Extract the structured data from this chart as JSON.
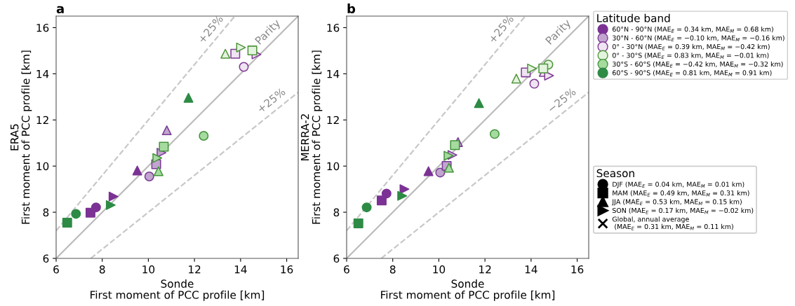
{
  "chart_data": [
    {
      "type": "scatter",
      "title": "a",
      "xlabel": "Sonde\nFirst moment of PCC profile [km]",
      "ylabel": "ERA5\nFirst moment of PCC profile [km]",
      "xlim": [
        6,
        16.5
      ],
      "ylim": [
        6,
        16.5
      ],
      "xticks": [
        6,
        8,
        10,
        12,
        14,
        16
      ],
      "yticks": [
        6,
        8,
        10,
        12,
        14,
        16
      ],
      "legend": false,
      "annotations": [
        "+25%",
        "Parity",
        "+25%"
      ],
      "series": [
        {
          "type": "line",
          "color": "#c8c8c8",
          "line_style": "dashed",
          "x": [
            6,
            13.75
          ],
          "values": [
            7.2,
            16.5
          ]
        },
        {
          "type": "line",
          "color": "#bbbbbb",
          "line_style": "solid",
          "x": [
            6,
            16.5
          ],
          "values": [
            6,
            16.5
          ]
        },
        {
          "type": "line",
          "color": "#c8c8c8",
          "line_style": "dashed",
          "x": [
            7.5,
            16.5
          ],
          "values": [
            6,
            13.2
          ]
        },
        {
          "color": "#7b3294",
          "marker": "circle",
          "x": [
            7.73
          ],
          "values": [
            8.21
          ]
        },
        {
          "color": "#7b3294",
          "marker": "square",
          "x": [
            7.49
          ],
          "values": [
            7.98
          ]
        },
        {
          "color": "#7b3294",
          "marker": "triangle",
          "x": [
            9.52
          ],
          "values": [
            9.81
          ]
        },
        {
          "color": "#7b3294",
          "marker": "triangle-right",
          "x": [
            8.49
          ],
          "values": [
            8.68
          ]
        },
        {
          "color": "#c2a5cf",
          "marker": "circle",
          "x": [
            10.04
          ],
          "values": [
            9.55
          ]
        },
        {
          "color": "#c2a5cf",
          "marker": "square",
          "x": [
            10.34
          ],
          "values": [
            10.08
          ]
        },
        {
          "color": "#c2a5cf",
          "marker": "triangle",
          "x": [
            10.8
          ],
          "values": [
            11.55
          ]
        },
        {
          "color": "#c2a5cf",
          "marker": "triangle-right",
          "x": [
            10.57
          ],
          "values": [
            10.58
          ]
        },
        {
          "color": "#efe4f2",
          "marker": "circle",
          "x": [
            14.14
          ],
          "values": [
            14.3
          ]
        },
        {
          "color": "#efe4f2",
          "marker": "square",
          "x": [
            13.77
          ],
          "values": [
            14.87
          ]
        },
        {
          "color": "#efe4f2",
          "marker": "triangle-right",
          "x": [
            14.69
          ],
          "values": [
            14.84
          ]
        },
        {
          "color": "#e3f4de",
          "marker": "square",
          "x": [
            14.51
          ],
          "values": [
            15.01
          ]
        },
        {
          "color": "#e3f4de",
          "marker": "triangle",
          "x": [
            13.34
          ],
          "values": [
            14.87
          ]
        },
        {
          "color": "#e3f4de",
          "marker": "triangle-right",
          "x": [
            14.02
          ],
          "values": [
            15.14
          ]
        },
        {
          "color": "#a6dba0",
          "marker": "circle",
          "x": [
            12.4
          ],
          "values": [
            11.31
          ]
        },
        {
          "color": "#a6dba0",
          "marker": "square",
          "x": [
            10.67
          ],
          "values": [
            10.84
          ]
        },
        {
          "color": "#a6dba0",
          "marker": "triangle",
          "x": [
            10.44
          ],
          "values": [
            9.78
          ]
        },
        {
          "color": "#a6dba0",
          "marker": "triangle-right",
          "x": [
            10.39
          ],
          "values": [
            10.35
          ]
        },
        {
          "color": "#2e8b45",
          "marker": "circle",
          "x": [
            6.86
          ],
          "values": [
            7.93
          ]
        },
        {
          "color": "#2e8b45",
          "marker": "square",
          "x": [
            6.48
          ],
          "values": [
            7.55
          ]
        },
        {
          "color": "#2e8b45",
          "marker": "triangle",
          "x": [
            11.74
          ],
          "values": [
            12.96
          ]
        },
        {
          "color": "#2e8b45",
          "marker": "triangle-right",
          "x": [
            8.37
          ],
          "values": [
            8.31
          ]
        }
      ]
    },
    {
      "type": "scatter",
      "title": "b",
      "xlabel": "Sonde\nFirst moment of PCC profile [km]",
      "ylabel": "MERRA-2\nFirst moment of PCC profile [km]",
      "xlim": [
        6,
        16.5
      ],
      "ylim": [
        6,
        16.5
      ],
      "xticks": [
        6,
        8,
        10,
        12,
        14,
        16
      ],
      "yticks": [
        6,
        8,
        10,
        12,
        14,
        16
      ],
      "legend": "right",
      "legend_title": [
        "Latitude band",
        "Season"
      ],
      "annotations": [
        "+25%",
        "Parity",
        "−25%"
      ],
      "series": [
        {
          "type": "line",
          "color": "#c8c8c8",
          "line_style": "dashed",
          "x": [
            6,
            13.75
          ],
          "values": [
            7.2,
            16.5
          ]
        },
        {
          "type": "line",
          "color": "#bbbbbb",
          "line_style": "solid",
          "x": [
            6,
            16.5
          ],
          "values": [
            6,
            16.5
          ]
        },
        {
          "type": "line",
          "color": "#c8c8c8",
          "line_style": "dashed",
          "x": [
            7.5,
            16.5
          ],
          "values": [
            6,
            13.2
          ]
        },
        {
          "name": "60°N - 90°N (MAE$_{E}$ = 0.34 km, MAE$_{M}$ = 0.68 km)",
          "color": "#7b3294",
          "marker": "circle",
          "x": [
            7.73
          ],
          "values": [
            8.81
          ]
        },
        {
          "color": "#7b3294",
          "marker": "square",
          "x": [
            7.52
          ],
          "values": [
            8.51
          ]
        },
        {
          "color": "#7b3294",
          "marker": "triangle",
          "x": [
            9.55
          ],
          "values": [
            9.78
          ]
        },
        {
          "color": "#7b3294",
          "marker": "triangle-right",
          "x": [
            8.51
          ],
          "values": [
            9.0
          ]
        },
        {
          "name": "30°N - 60°N (MAE$_{E}$ = −0.10 km, MAE$_{M}$ = −0.16 km)",
          "color": "#c2a5cf",
          "marker": "circle",
          "x": [
            10.06
          ],
          "values": [
            9.72
          ]
        },
        {
          "color": "#c2a5cf",
          "marker": "square",
          "x": [
            10.34
          ],
          "values": [
            10.01
          ]
        },
        {
          "color": "#c2a5cf",
          "marker": "triangle",
          "x": [
            10.83
          ],
          "values": [
            11.04
          ]
        },
        {
          "color": "#c2a5cf",
          "marker": "triangle-right",
          "x": [
            10.59
          ],
          "values": [
            10.48
          ]
        },
        {
          "name": "0° - 30°N (MAE$_{E}$ = 0.39 km, MAE$_{M}$ = −0.42 km)",
          "color": "#efe4f2",
          "marker": "circle",
          "x": [
            14.14
          ],
          "values": [
            13.57
          ]
        },
        {
          "color": "#efe4f2",
          "marker": "square",
          "x": [
            13.77
          ],
          "values": [
            14.06
          ]
        },
        {
          "color": "#efe4f2",
          "marker": "triangle",
          "x": [
            14.55
          ],
          "values": [
            14.08
          ]
        },
        {
          "color": "#efe4f2",
          "marker": "triangle-right",
          "x": [
            14.78
          ],
          "values": [
            13.92
          ]
        },
        {
          "name": "0° - 30°S (MAE$_{E}$ = 0.83 km, MAE$_{M}$ = −0.01 km)",
          "color": "#e3f4de",
          "marker": "circle",
          "x": [
            14.75
          ],
          "values": [
            14.4
          ]
        },
        {
          "color": "#e3f4de",
          "marker": "square",
          "x": [
            14.53
          ],
          "values": [
            14.23
          ]
        },
        {
          "color": "#e3f4de",
          "marker": "triangle",
          "x": [
            13.36
          ],
          "values": [
            13.79
          ]
        },
        {
          "color": "#e3f4de",
          "marker": "triangle-right",
          "x": [
            14.04
          ],
          "values": [
            14.23
          ]
        },
        {
          "name": "30°S - 60°S (MAE$_{E}$ = −0.42 km, MAE$_{M}$ = −0.32 km)",
          "color": "#a6dba0",
          "marker": "circle",
          "x": [
            12.42
          ],
          "values": [
            11.39
          ]
        },
        {
          "color": "#a6dba0",
          "marker": "square",
          "x": [
            10.7
          ],
          "values": [
            10.91
          ]
        },
        {
          "color": "#a6dba0",
          "marker": "triangle",
          "x": [
            10.44
          ],
          "values": [
            9.93
          ]
        },
        {
          "color": "#a6dba0",
          "marker": "triangle-right",
          "x": [
            10.42
          ],
          "values": [
            10.45
          ]
        },
        {
          "name": "60°S - 90°S (MAE$_{E}$ = 0.81 km, MAE$_{M}$ = 0.91 km)",
          "color": "#2e8b45",
          "marker": "circle",
          "x": [
            6.87
          ],
          "values": [
            8.21
          ]
        },
        {
          "color": "#2e8b45",
          "marker": "square",
          "x": [
            6.51
          ],
          "values": [
            7.52
          ]
        },
        {
          "color": "#2e8b45",
          "marker": "triangle",
          "x": [
            11.74
          ],
          "values": [
            12.73
          ]
        },
        {
          "color": "#2e8b45",
          "marker": "triangle-right",
          "x": [
            8.41
          ],
          "values": [
            8.71
          ]
        },
        {
          "name": "DJF (MAE$_{E}$ = 0.04 km, MAE$_{M}$ = 0.01 km)",
          "color": "#000000",
          "marker": "circle"
        },
        {
          "name": "MAM (MAE$_{E}$ = 0.49 km, MAE$_{M}$ = 0.31 km)",
          "color": "#000000",
          "marker": "square"
        },
        {
          "name": "JJA (MAE$_{E}$ = 0.53 km, MAE$_{M}$ = 0.15 km)",
          "color": "#000000",
          "marker": "triangle"
        },
        {
          "name": "SON (MAE$_{E}$ = 0.17 km, MAE$_{M}$ = −0.02 km)",
          "color": "#000000",
          "marker": "triangle-right"
        },
        {
          "name": "Global, annual average\n (MAE$_{E}$ = 0.31 km, MAE$_{M}$ = 0.11 km)",
          "color": "#000000",
          "marker": "cross"
        }
      ]
    }
  ]
}
